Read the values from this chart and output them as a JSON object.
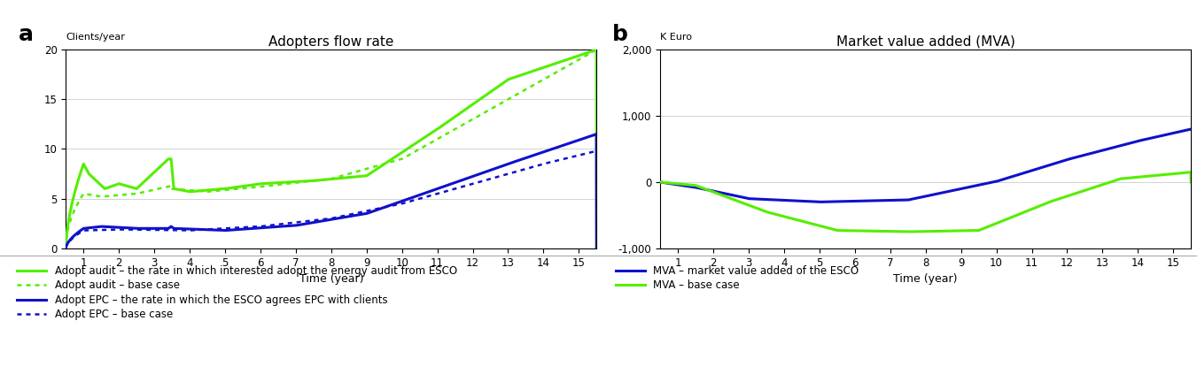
{
  "title_a": "Adopters flow rate",
  "title_b": "Market value added (MVA)",
  "label_a": "a",
  "label_b": "b",
  "ylabel_a": "Clients/year",
  "ylabel_b": "K Euro",
  "xlabel": "Time (year)",
  "ylim_a": [
    0,
    20
  ],
  "ylim_b": [
    -1000,
    2000
  ],
  "yticks_a": [
    0,
    5,
    10,
    15,
    20
  ],
  "yticks_b": [
    -1000,
    0,
    1000,
    2000
  ],
  "ytick_labels_b": [
    "-1,000",
    "0",
    "1,000",
    "2,000"
  ],
  "xticks": [
    1,
    2,
    3,
    4,
    5,
    6,
    7,
    8,
    9,
    10,
    11,
    12,
    13,
    14,
    15
  ],
  "color_green": "#55EE00",
  "color_blue": "#1010CC",
  "legend_items_a": [
    {
      "label": "Adopt audit – the rate in which interested adopt the energy audit from ESCO",
      "color": "#55EE00",
      "linestyle": "solid"
    },
    {
      "label": "Adopt audit – base case",
      "color": "#55EE00",
      "linestyle": "dotted"
    },
    {
      "label": "Adopt EPC – the rate in which the ESCO agrees EPC with clients",
      "color": "#1010CC",
      "linestyle": "solid"
    },
    {
      "label": "Adopt EPC – base case",
      "color": "#1010CC",
      "linestyle": "dotted"
    }
  ],
  "legend_items_b": [
    {
      "label": "MVA – market value added of the ESCO",
      "color": "#1010CC",
      "linestyle": "solid"
    },
    {
      "label": "MVA – base case",
      "color": "#55EE00",
      "linestyle": "solid"
    }
  ]
}
